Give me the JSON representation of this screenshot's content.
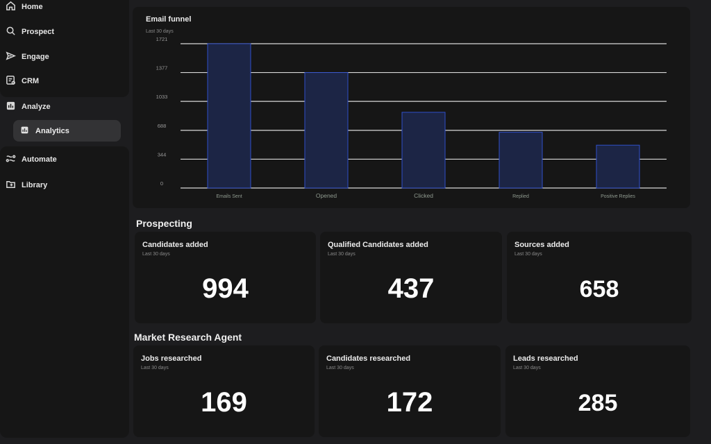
{
  "sidebar": {
    "items": [
      {
        "label": "Home",
        "icon": "home-icon"
      },
      {
        "label": "Prospect",
        "icon": "search-icon"
      },
      {
        "label": "Engage",
        "icon": "send-icon"
      },
      {
        "label": "CRM",
        "icon": "crm-icon"
      },
      {
        "label": "Analyze",
        "icon": "bar-chart-icon"
      },
      {
        "label": "Analytics",
        "icon": "bar-chart-icon",
        "active": true
      },
      {
        "label": "Automate",
        "icon": "automate-icon"
      },
      {
        "label": "Library",
        "icon": "folder-icon"
      }
    ]
  },
  "funnel": {
    "title": "Email funnel",
    "subtitle": "Last 30 days"
  },
  "chart_data": {
    "type": "bar",
    "title": "Email funnel",
    "subtitle": "Last 30 days",
    "categories": [
      "Emails Sent",
      "Opened",
      "Clicked",
      "Replied",
      "Positive Replies"
    ],
    "values": [
      1721,
      1377,
      903,
      665,
      511
    ],
    "yticks": [
      0,
      344,
      688,
      1033,
      1377,
      1721
    ],
    "ylim": [
      0,
      1721
    ],
    "grid": true,
    "colors": {
      "bar_fill": "#1c2545",
      "bar_stroke": "#2f4fc9",
      "grid": "#d9d9d9"
    }
  },
  "prospecting": {
    "title": "Prospecting",
    "cards": [
      {
        "title": "Candidates added",
        "subtitle": "Last 30 days",
        "value": "994"
      },
      {
        "title": "Qualified Candidates added",
        "subtitle": "Last 30 days",
        "value": "437"
      },
      {
        "title": "Sources added",
        "subtitle": "Last 30 days",
        "value": "658"
      }
    ]
  },
  "market_research": {
    "title": "Market Research Agent",
    "cards": [
      {
        "title": "Jobs researched",
        "subtitle": "Last 30 days",
        "value": "169"
      },
      {
        "title": "Candidates researched",
        "subtitle": "Last 30 days",
        "value": "172"
      },
      {
        "title": "Leads researched",
        "subtitle": "Last 30 days",
        "value": "285"
      }
    ]
  }
}
